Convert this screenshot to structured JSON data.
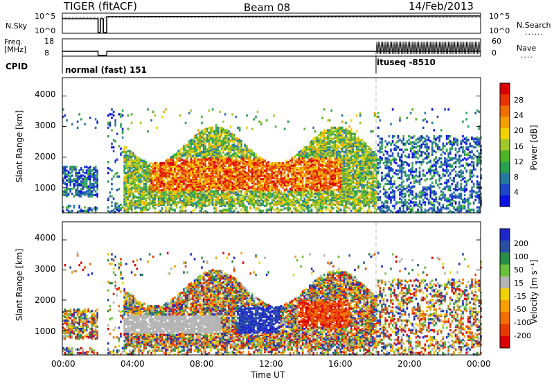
{
  "header": {
    "title": "TIGER (fitACF)",
    "beam": "Beam 08",
    "date": "14/Feb/2013"
  },
  "top_panel": {
    "left_label": "N.Sky",
    "left_ticks": [
      "10^5",
      "10^0"
    ],
    "right_label": "N.Search",
    "right_ticks": [
      "10^5",
      "10^0"
    ]
  },
  "freq_panel": {
    "left_label_1": "Freq.",
    "left_label_2": "[MHz]",
    "left_ticks": [
      "18",
      "8"
    ],
    "right_label": "Nave",
    "right_ticks": [
      "60",
      "0"
    ]
  },
  "cpid": {
    "label": "CPID",
    "mode_1": "normal (fast) 151",
    "mode_2": "ituseq -8510"
  },
  "x_axis": {
    "ticks": [
      "00:00",
      "04:00",
      "08:00",
      "12:00",
      "16:00",
      "20:00",
      "00:00"
    ],
    "label": "Time UT"
  },
  "chart_data": [
    {
      "type": "heatmap",
      "name": "power-panel",
      "ylabel": "Slant Range [km]",
      "yticks": [
        "1000",
        "2000",
        "3000",
        "4000"
      ],
      "ylim": [
        180,
        4600
      ],
      "xlim_hours": [
        0,
        24
      ],
      "colorbar": {
        "label": "Power [dB]",
        "ticks": [
          "4",
          "8",
          "12",
          "16",
          "20",
          "24",
          "28"
        ],
        "range": [
          0,
          30
        ],
        "colors": [
          "#0a14e0",
          "#1e46c8",
          "#2878a0",
          "#28a050",
          "#50b428",
          "#a0c828",
          "#f0d200",
          "#f5a000",
          "#f06e00",
          "#e63200",
          "#dc0000"
        ]
      }
    },
    {
      "type": "heatmap",
      "name": "velocity-panel",
      "ylabel": "Slant Range [km]",
      "yticks": [
        "1000",
        "2000",
        "3000",
        "4000"
      ],
      "ylim": [
        180,
        4600
      ],
      "xlim_hours": [
        0,
        24
      ],
      "colorbar": {
        "label": "Velocity [m s⁻¹]",
        "ticks": [
          "200",
          "100",
          "50",
          "15",
          "-15",
          "-50",
          "-100",
          "-200"
        ],
        "colors": [
          "#1e28c8",
          "#2850a0",
          "#2a8c46",
          "#6cc03c",
          "#b4b4b4",
          "#f0d200",
          "#f5a000",
          "#f06e00",
          "#e63c00",
          "#dc0000"
        ]
      }
    }
  ]
}
